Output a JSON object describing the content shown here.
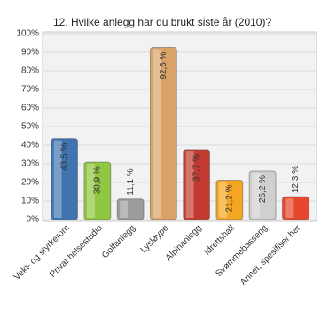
{
  "chart_data": {
    "type": "bar",
    "title": "12. Hvilke anlegg har du brukt siste år (2010)?",
    "categories": [
      "Vekt- og styrkerom",
      "Privat helsestudio",
      "Golfanlegg",
      "Lysløype",
      "Alpinanlegg",
      "Idrettshall",
      "Svømmebasseng",
      "Annet, spesifiser her"
    ],
    "values": [
      43.5,
      30.9,
      11.1,
      92.6,
      37.7,
      21.2,
      26.2,
      12.3
    ],
    "value_labels": [
      "43,5 %",
      "30,9 %",
      "11,1 %",
      "92,6 %",
      "37,7 %",
      "21,2 %",
      "26,2 %",
      "12,3 %"
    ],
    "colors": [
      "#3f74b0",
      "#8fc740",
      "#9c9c9c",
      "#d9a268",
      "#c23a30",
      "#f4a623",
      "#d0d0d0",
      "#e6472d"
    ],
    "ylim": [
      0,
      100
    ],
    "yticks": [
      {
        "value": 0,
        "label": "0%"
      },
      {
        "value": 10,
        "label": "10%"
      },
      {
        "value": 20,
        "label": "20%"
      },
      {
        "value": 30,
        "label": "30%"
      },
      {
        "value": 40,
        "label": "40%"
      },
      {
        "value": 50,
        "label": "50%"
      },
      {
        "value": 60,
        "label": "60%"
      },
      {
        "value": 70,
        "label": "70%"
      },
      {
        "value": 80,
        "label": "80%"
      },
      {
        "value": 90,
        "label": "90%"
      },
      {
        "value": 100,
        "label": "100%"
      }
    ],
    "grid": true
  }
}
